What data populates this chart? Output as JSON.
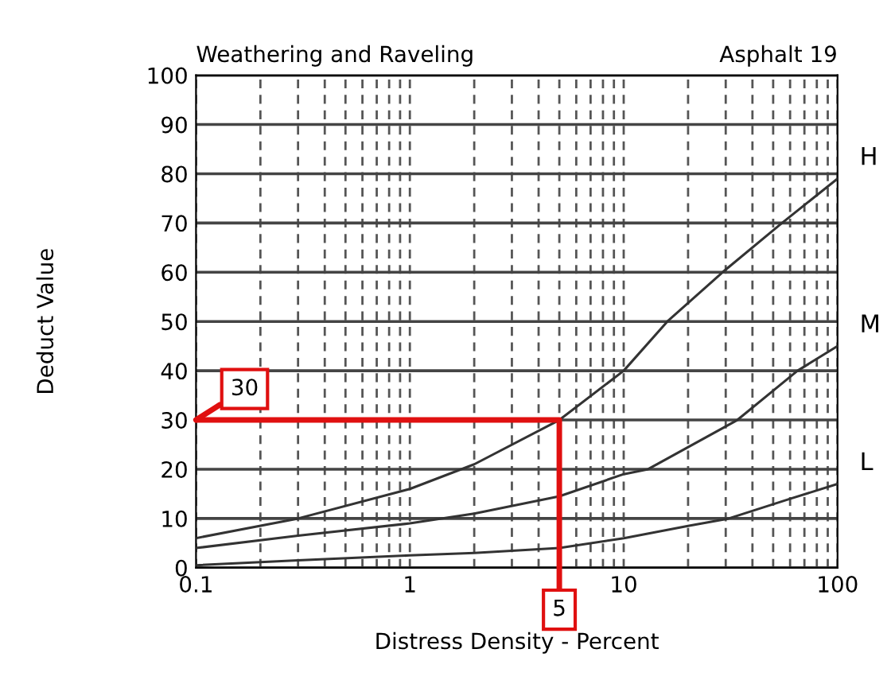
{
  "chart_data": {
    "type": "line",
    "title": "Weathering and Raveling",
    "subtitle": "Asphalt 19",
    "xlabel": "Distress Density - Percent",
    "ylabel": "Deduct Value",
    "log": "x",
    "xlim": [
      0.1,
      100
    ],
    "ylim": [
      0,
      100
    ],
    "xticks": [
      {
        "value": 0.1,
        "label": "0.1"
      },
      {
        "value": 0.2,
        "label": null
      },
      {
        "value": 0.3,
        "label": null
      },
      {
        "value": 0.4,
        "label": null
      },
      {
        "value": 0.5,
        "label": null
      },
      {
        "value": 0.6,
        "label": null
      },
      {
        "value": 0.7,
        "label": null
      },
      {
        "value": 0.8,
        "label": null
      },
      {
        "value": 0.9,
        "label": null
      },
      1,
      {
        "value": 2,
        "label": null
      },
      {
        "value": 3,
        "label": null
      },
      {
        "value": 4,
        "label": null
      },
      {
        "value": 5,
        "label": null
      },
      {
        "value": 6,
        "label": null
      },
      {
        "value": 7,
        "label": null
      },
      {
        "value": 8,
        "label": null
      },
      {
        "value": 9,
        "label": null
      },
      10,
      {
        "value": 20,
        "label": null
      },
      {
        "value": 30,
        "label": null
      },
      {
        "value": 40,
        "label": null
      },
      {
        "value": 50,
        "label": null
      },
      {
        "value": 60,
        "label": null
      },
      {
        "value": 70,
        "label": null
      },
      {
        "value": 80,
        "label": null
      },
      {
        "value": 90,
        "label": null
      },
      100
    ],
    "yticks": [
      0,
      10,
      20,
      30,
      40,
      50,
      60,
      70,
      80,
      90,
      100
    ],
    "grid": true,
    "legend": false,
    "marker": "none",
    "line_style": "solid",
    "series": [
      {
        "name": "H",
        "color": "#333333",
        "x": [
          0.1,
          0.3,
          1,
          2,
          5,
          10,
          16,
          29,
          55,
          100
        ],
        "values": [
          6,
          10,
          16,
          21,
          30,
          40,
          50,
          60,
          70,
          79
        ]
      },
      {
        "name": "M",
        "color": "#333333",
        "x": [
          0.1,
          0.3,
          1,
          2,
          5,
          10,
          13,
          34,
          65,
          100
        ],
        "values": [
          4,
          6.5,
          9,
          11,
          14.5,
          19,
          20,
          30,
          40,
          45
        ]
      },
      {
        "name": "L",
        "color": "#333333",
        "x": [
          0.1,
          0.3,
          1,
          2,
          5,
          10,
          20,
          31,
          60,
          100
        ],
        "values": [
          0.5,
          1.5,
          2.5,
          3,
          4,
          6,
          8.5,
          10,
          14,
          17
        ]
      },
      {
        "color": "#e01010",
        "x": [
          0.1,
          5,
          5
        ],
        "values": [
          30,
          30,
          0
        ]
      }
    ],
    "annotations": [
      {
        "text": "30",
        "x": 0.1,
        "y": 30
      },
      {
        "text": "5",
        "x": 5,
        "y": 0
      }
    ]
  }
}
